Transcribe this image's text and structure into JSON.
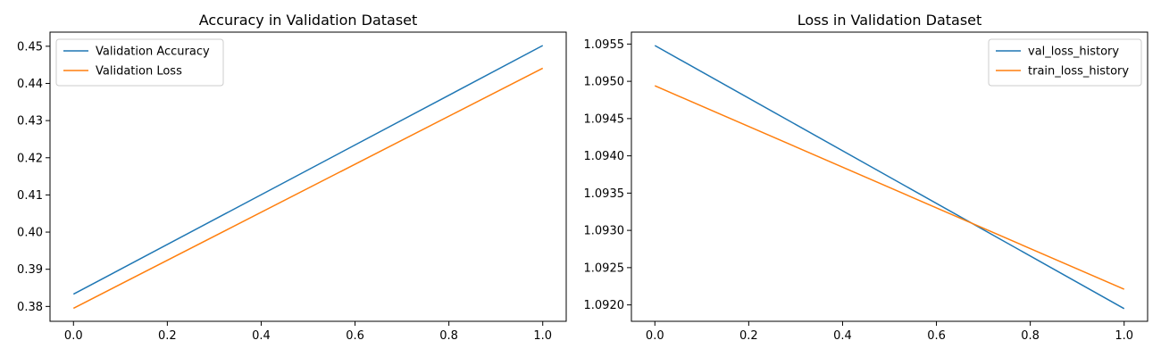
{
  "chart_data": [
    {
      "type": "line",
      "title": "Accuracy in Validation Dataset",
      "xlabel": "",
      "ylabel": "",
      "x": [
        0.0,
        1.0
      ],
      "xlim": [
        -0.05,
        1.05
      ],
      "ylim": [
        0.376,
        0.4538
      ],
      "xticks": [
        0.0,
        0.2,
        0.4,
        0.6,
        0.8,
        1.0
      ],
      "xtick_labels": [
        "0.0",
        "0.2",
        "0.4",
        "0.6",
        "0.8",
        "1.0"
      ],
      "yticks": [
        0.38,
        0.39,
        0.4,
        0.41,
        0.42,
        0.43,
        0.44,
        0.45
      ],
      "ytick_labels": [
        "0.38",
        "0.39",
        "0.40",
        "0.41",
        "0.42",
        "0.43",
        "0.44",
        "0.45"
      ],
      "grid": false,
      "legend": "upper-left",
      "series": [
        {
          "name": "Validation Accuracy",
          "values": [
            0.3833,
            0.4502
          ],
          "color": "#1f77b4"
        },
        {
          "name": "Validation Loss",
          "values": [
            0.3795,
            0.4441
          ],
          "color": "#ff7f0e"
        }
      ]
    },
    {
      "type": "line",
      "title": "Loss in Validation Dataset",
      "xlabel": "",
      "ylabel": "",
      "x": [
        0.0,
        1.0
      ],
      "xlim": [
        -0.05,
        1.05
      ],
      "ylim": [
        1.09178,
        1.09566
      ],
      "xticks": [
        0.0,
        0.2,
        0.4,
        0.6,
        0.8,
        1.0
      ],
      "xtick_labels": [
        "0.0",
        "0.2",
        "0.4",
        "0.6",
        "0.8",
        "1.0"
      ],
      "yticks": [
        1.092,
        1.0925,
        1.093,
        1.0935,
        1.094,
        1.0945,
        1.095,
        1.0955
      ],
      "ytick_labels": [
        "1.0920",
        "1.0925",
        "1.0930",
        "1.0935",
        "1.0940",
        "1.0945",
        "1.0950",
        "1.0955"
      ],
      "grid": false,
      "legend": "upper-right",
      "series": [
        {
          "name": "val_loss_history",
          "values": [
            1.09548,
            1.09195
          ],
          "color": "#1f77b4"
        },
        {
          "name": "train_loss_history",
          "values": [
            1.09494,
            1.09221
          ],
          "color": "#ff7f0e"
        }
      ]
    }
  ]
}
